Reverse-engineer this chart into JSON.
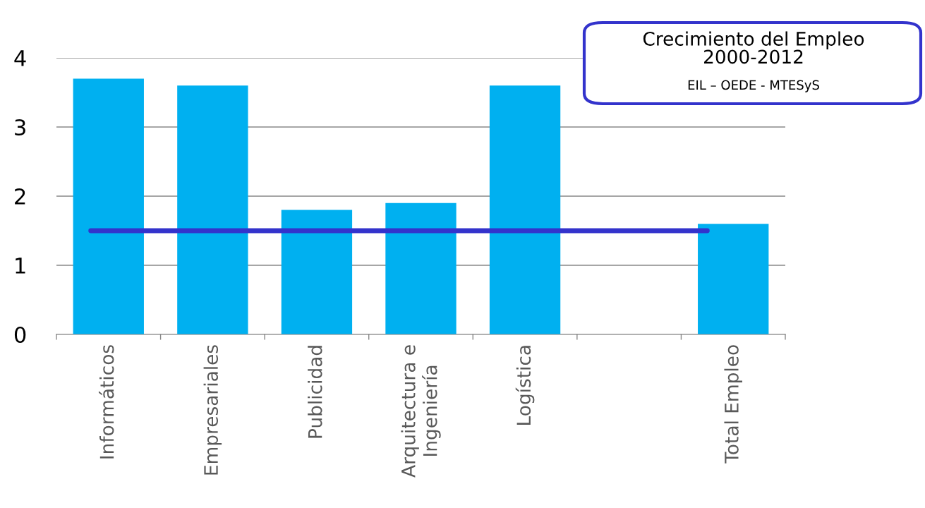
{
  "chart_data": {
    "type": "bar",
    "title": "Crecimiento del Empleo\n2000-2012",
    "annotations": [
      "EIL – OEDE - MTESyS"
    ],
    "categories": [
      "Informáticos",
      "Empresariales",
      "Publicidad",
      "Arquitectura e\nIngeniería",
      "Logística",
      null,
      "Total Empleo"
    ],
    "values": [
      3.7,
      3.6,
      1.8,
      1.9,
      3.6,
      null,
      1.6
    ],
    "color": "#00b0f0",
    "ylim": [
      0,
      4
    ],
    "yticks": [
      0,
      1,
      2,
      3,
      4
    ],
    "grid": "y",
    "ref_lines": [
      {
        "axis": "y",
        "value": 1.5,
        "color": "#3333cc"
      }
    ]
  }
}
